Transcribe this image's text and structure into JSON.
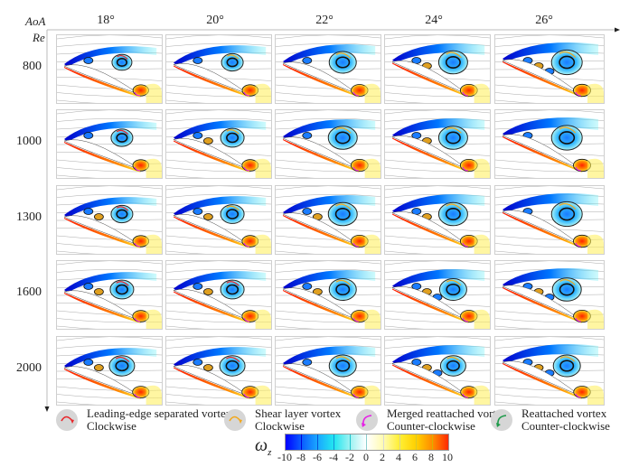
{
  "figure": {
    "x_axis_label": "AoA",
    "y_axis_label": "Re",
    "columns": [
      "18°",
      "20°",
      "22°",
      "24°",
      "26°"
    ],
    "rows": [
      "800",
      "1000",
      "1300",
      "1600",
      "2000"
    ]
  },
  "legend": [
    {
      "name": "leading-edge-separated-vortex",
      "title": "Leading-edge separated vortex",
      "direction": "Clockwise",
      "color": "#e8262a",
      "icon": "clockwise-arrow-icon"
    },
    {
      "name": "shear-layer-vortex",
      "title": "Shear layer vortex",
      "direction": "Clockwise",
      "color": "#f2a81d",
      "icon": "clockwise-arrow-icon"
    },
    {
      "name": "merged-reattached-vortex",
      "title": "Merged reattached vortex",
      "direction": "Counter-clockwise",
      "color": "#e61ee6",
      "icon": "counter-clockwise-arrow-icon"
    },
    {
      "name": "reattached-vortex",
      "title": "Reattached vortex",
      "direction": "Counter-clockwise",
      "color": "#1e9a4a",
      "icon": "counter-clockwise-arrow-icon"
    }
  ],
  "colorbar": {
    "symbol": "ω",
    "subscript": "z",
    "ticks": [
      "-10",
      "-8",
      "-6",
      "-4",
      "-2",
      "0",
      "2",
      "4",
      "6",
      "8",
      "10"
    ],
    "range": [
      -10,
      10
    ],
    "colors": [
      "#0000ff",
      "#0a5cff",
      "#1aa8ff",
      "#22e6f0",
      "#9ff2f2",
      "#ffffff",
      "#fffbb0",
      "#ffee33",
      "#ffd000",
      "#ff8c00",
      "#ff2a00"
    ]
  },
  "chart_data": {
    "type": "heatmap",
    "title": "",
    "xlabel": "AoA",
    "ylabel": "Re",
    "x": [
      "18°",
      "20°",
      "22°",
      "24°",
      "26°"
    ],
    "y": [
      "800",
      "1000",
      "1300",
      "1600",
      "2000"
    ],
    "value_label": "ωz",
    "value_range": [
      -10,
      10
    ],
    "panels": "vorticity contours with streamlines around an airfoil; each panel shows vortex structures",
    "vortex_sizes": [
      [
        0.55,
        0.6,
        0.75,
        0.8,
        0.85
      ],
      [
        0.6,
        0.65,
        0.8,
        0.8,
        0.85
      ],
      [
        0.6,
        0.65,
        0.8,
        0.8,
        0.85
      ],
      [
        0.65,
        0.65,
        0.75,
        0.75,
        0.8
      ],
      [
        0.7,
        0.7,
        0.75,
        0.7,
        0.75
      ]
    ],
    "secondary_vortices": [
      [
        1,
        1,
        1,
        2,
        3
      ],
      [
        1,
        2,
        1,
        2,
        1
      ],
      [
        2,
        2,
        2,
        2,
        1
      ],
      [
        2,
        2,
        2,
        3,
        3
      ],
      [
        2,
        2,
        1,
        3,
        3
      ]
    ]
  }
}
